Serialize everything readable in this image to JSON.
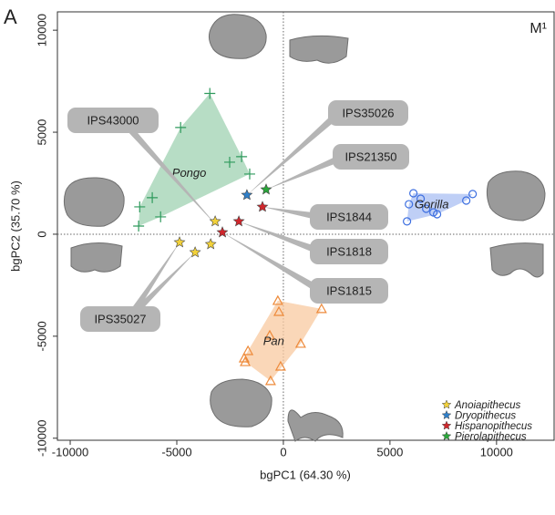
{
  "chart_data": {
    "type": "scatter",
    "panel_label": "A",
    "annotation": "M¹",
    "x_label": "bgPC1 (64.30 %)",
    "y_label": "bgPC2 (35.70 %)",
    "xlim": [
      -10600,
      12700
    ],
    "ylim": [
      -10100,
      10900
    ],
    "xticks": [
      -10000,
      -5000,
      0,
      5000,
      10000
    ],
    "yticks": [
      -10000,
      -5000,
      0,
      5000,
      10000
    ],
    "zero_lines": true,
    "legend": "lower right",
    "groups": [
      {
        "name": "Pongo",
        "color": "#2e9a5c",
        "fill": "#9fd1b2",
        "marker": "cross",
        "x": [
          -3450,
          -4820,
          -1960,
          -2520,
          -1580,
          -6150,
          -6740,
          -5760,
          -6790
        ],
        "y": [
          6900,
          5230,
          3800,
          3530,
          2950,
          1790,
          1340,
          850,
          400
        ]
      },
      {
        "name": "Gorilla",
        "color": "#3d6fe0",
        "fill": "#a9bff3",
        "marker": "circle",
        "x": [
          6100,
          5890,
          5800,
          6700,
          7040,
          7210,
          8580,
          8880,
          6440
        ],
        "y": [
          2010,
          1470,
          630,
          1250,
          1070,
          980,
          1650,
          1970,
          1740
        ]
      },
      {
        "name": "Pan",
        "color": "#ee8a3a",
        "fill": "#f8c9a0",
        "marker": "triangle",
        "x": [
          -260,
          -210,
          -640,
          1790,
          810,
          -1660,
          -1840,
          -130,
          -600,
          -1790
        ],
        "y": [
          -3260,
          -3800,
          -4960,
          -3660,
          -5360,
          -5720,
          -6080,
          -6480,
          -7190,
          -6260
        ]
      }
    ],
    "series": [
      {
        "name": "Anoiapithecus",
        "color": "#f2d13a",
        "marker": "star",
        "x": [
          -3200,
          -4870,
          -4140,
          -3410
        ],
        "y": [
          630,
          -400,
          -890,
          -490
        ]
      },
      {
        "name": "Dryopithecus",
        "color": "#2f7fc8",
        "marker": "star",
        "x": [
          -1710
        ],
        "y": [
          1920
        ]
      },
      {
        "name": "Hispanopithecus",
        "color": "#d0262c",
        "marker": "star",
        "x": [
          -980,
          -2090,
          -2860
        ],
        "y": [
          1340,
          630,
          90
        ]
      },
      {
        "name": "Pierolapithecus",
        "color": "#2aa63a",
        "marker": "star",
        "x": [
          -810
        ],
        "y": [
          2190
        ]
      }
    ],
    "callouts": [
      "IPS43000",
      "IPS35026",
      "IPS21350",
      "IPS1844",
      "IPS1818",
      "IPS1815",
      "IPS35027"
    ]
  }
}
